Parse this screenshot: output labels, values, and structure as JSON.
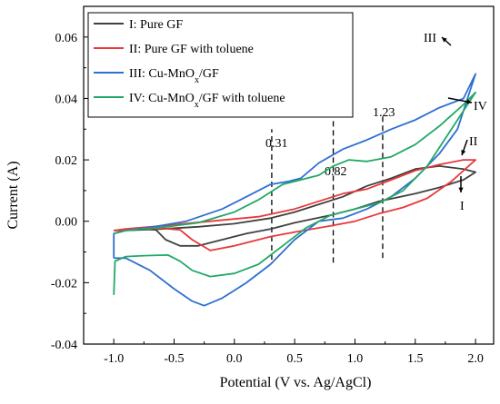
{
  "chart_data": {
    "type": "line",
    "xlabel": "Potential (V vs. Ag/AgCl)",
    "ylabel": "Current (A)",
    "xlim": [
      -1.25,
      2.15
    ],
    "ylim": [
      -0.04,
      0.07
    ],
    "xticks": [
      -1.0,
      -0.5,
      0.0,
      0.5,
      1.0,
      1.5,
      2.0
    ],
    "xtick_labels": [
      "-1.0",
      "-0.5",
      "0.0",
      "0.5",
      "1.0",
      "1.5",
      "2.0"
    ],
    "yticks": [
      -0.04,
      -0.02,
      0.0,
      0.02,
      0.04,
      0.06
    ],
    "ytick_labels": [
      "-0.04",
      "-0.02",
      "0.00",
      "0.02",
      "0.04",
      "0.06"
    ],
    "grid": false,
    "legend_position": "top-left",
    "series": [
      {
        "name": "I: Pure GF",
        "color": "#404040",
        "points": [
          [
            -1.0,
            -0.003
          ],
          [
            -0.8,
            -0.0025
          ],
          [
            -0.65,
            -0.0028
          ],
          [
            -0.57,
            -0.006
          ],
          [
            -0.45,
            -0.008
          ],
          [
            -0.3,
            -0.008
          ],
          [
            -0.1,
            -0.006
          ],
          [
            0.1,
            -0.004
          ],
          [
            0.3,
            -0.0025
          ],
          [
            0.5,
            -0.0005
          ],
          [
            0.8,
            0.002
          ],
          [
            1.0,
            0.004
          ],
          [
            1.2,
            0.0065
          ],
          [
            1.5,
            0.009
          ],
          [
            1.7,
            0.011
          ],
          [
            1.9,
            0.0135
          ],
          [
            2.0,
            0.016
          ],
          [
            1.9,
            0.017
          ],
          [
            1.7,
            0.018
          ],
          [
            1.5,
            0.017
          ],
          [
            1.3,
            0.014
          ],
          [
            1.1,
            0.0115
          ],
          [
            0.9,
            0.008
          ],
          [
            0.7,
            0.0055
          ],
          [
            0.5,
            0.003
          ],
          [
            0.3,
            0.001
          ],
          [
            0.0,
            -0.0008
          ],
          [
            -0.3,
            -0.0018
          ],
          [
            -0.6,
            -0.0025
          ],
          [
            -0.9,
            -0.003
          ],
          [
            -1.0,
            -0.003
          ]
        ]
      },
      {
        "name": "II: Pure GF with toluene",
        "color": "#e8383b",
        "points": [
          [
            -1.0,
            -0.003
          ],
          [
            -0.8,
            -0.0025
          ],
          [
            -0.6,
            -0.0023
          ],
          [
            -0.45,
            -0.0028
          ],
          [
            -0.35,
            -0.006
          ],
          [
            -0.2,
            -0.0095
          ],
          [
            0.0,
            -0.008
          ],
          [
            0.3,
            -0.005
          ],
          [
            0.5,
            -0.0035
          ],
          [
            0.8,
            -0.0015
          ],
          [
            1.0,
            0.0
          ],
          [
            1.2,
            0.0025
          ],
          [
            1.4,
            0.0045
          ],
          [
            1.6,
            0.0075
          ],
          [
            1.8,
            0.013
          ],
          [
            2.0,
            0.02
          ],
          [
            1.9,
            0.02
          ],
          [
            1.7,
            0.0185
          ],
          [
            1.5,
            0.0165
          ],
          [
            1.3,
            0.0135
          ],
          [
            1.1,
            0.0105
          ],
          [
            0.9,
            0.009
          ],
          [
            0.7,
            0.0065
          ],
          [
            0.5,
            0.004
          ],
          [
            0.2,
            0.0015
          ],
          [
            -0.2,
            0.0
          ],
          [
            -0.6,
            -0.0015
          ],
          [
            -0.9,
            -0.0025
          ],
          [
            -1.0,
            -0.003
          ]
        ]
      },
      {
        "name": "III: Cu-MnOx/GF",
        "color": "#2e6fd1",
        "points": [
          [
            -1.0,
            -0.012
          ],
          [
            -0.9,
            -0.012
          ],
          [
            -0.7,
            -0.016
          ],
          [
            -0.5,
            -0.022
          ],
          [
            -0.35,
            -0.026
          ],
          [
            -0.25,
            -0.0275
          ],
          [
            -0.1,
            -0.025
          ],
          [
            0.1,
            -0.02
          ],
          [
            0.3,
            -0.014
          ],
          [
            0.5,
            -0.006
          ],
          [
            0.7,
            0.0
          ],
          [
            0.9,
            0.001
          ],
          [
            1.1,
            0.004
          ],
          [
            1.3,
            0.008
          ],
          [
            1.5,
            0.014
          ],
          [
            1.7,
            0.022
          ],
          [
            1.85,
            0.03
          ],
          [
            2.0,
            0.048
          ],
          [
            1.9,
            0.04
          ],
          [
            1.7,
            0.037
          ],
          [
            1.5,
            0.033
          ],
          [
            1.3,
            0.03
          ],
          [
            1.1,
            0.0265
          ],
          [
            0.9,
            0.0235
          ],
          [
            0.7,
            0.019
          ],
          [
            0.55,
            0.014
          ],
          [
            0.45,
            0.013
          ],
          [
            0.3,
            0.012
          ],
          [
            0.1,
            0.008
          ],
          [
            -0.1,
            0.004
          ],
          [
            -0.4,
            0.0
          ],
          [
            -0.7,
            -0.002
          ],
          [
            -0.9,
            -0.003
          ],
          [
            -1.0,
            -0.004
          ],
          [
            -1.0,
            -0.012
          ]
        ]
      },
      {
        "name": "IV: Cu-MnOx/GF with toluene",
        "color": "#22a866",
        "points": [
          [
            -1.0,
            -0.024
          ],
          [
            -0.99,
            -0.013
          ],
          [
            -0.9,
            -0.0115
          ],
          [
            -0.75,
            -0.0112
          ],
          [
            -0.55,
            -0.011
          ],
          [
            -0.45,
            -0.013
          ],
          [
            -0.35,
            -0.016
          ],
          [
            -0.2,
            -0.018
          ],
          [
            0.0,
            -0.017
          ],
          [
            0.2,
            -0.014
          ],
          [
            0.4,
            -0.008
          ],
          [
            0.6,
            -0.002
          ],
          [
            0.8,
            0.002
          ],
          [
            1.0,
            0.004
          ],
          [
            1.2,
            0.006
          ],
          [
            1.4,
            0.01
          ],
          [
            1.6,
            0.018
          ],
          [
            1.8,
            0.03
          ],
          [
            2.0,
            0.042
          ],
          [
            1.9,
            0.038
          ],
          [
            1.7,
            0.031
          ],
          [
            1.5,
            0.025
          ],
          [
            1.3,
            0.021
          ],
          [
            1.1,
            0.0195
          ],
          [
            0.95,
            0.02
          ],
          [
            0.82,
            0.018
          ],
          [
            0.7,
            0.015
          ],
          [
            0.55,
            0.0135
          ],
          [
            0.4,
            0.012
          ],
          [
            0.2,
            0.007
          ],
          [
            0.0,
            0.003
          ],
          [
            -0.3,
            -0.0005
          ],
          [
            -0.6,
            -0.002
          ],
          [
            -0.9,
            -0.003
          ],
          [
            -1.0,
            -0.004
          ]
        ]
      }
    ],
    "vlines": [
      {
        "x": 0.31,
        "label": "0.31",
        "y0": -0.0125,
        "y1": 0.03
      },
      {
        "x": 0.82,
        "label": "0.82",
        "y0": -0.0135,
        "y1": 0.04
      },
      {
        "x": 1.23,
        "label": "1.23",
        "y0": -0.012,
        "y1": 0.035
      }
    ],
    "curve_labels": [
      {
        "text": "III",
        "color": "#000000"
      },
      {
        "text": "IV",
        "color": "#000000"
      },
      {
        "text": "II",
        "color": "#000000"
      },
      {
        "text": "I",
        "color": "#000000"
      }
    ]
  }
}
